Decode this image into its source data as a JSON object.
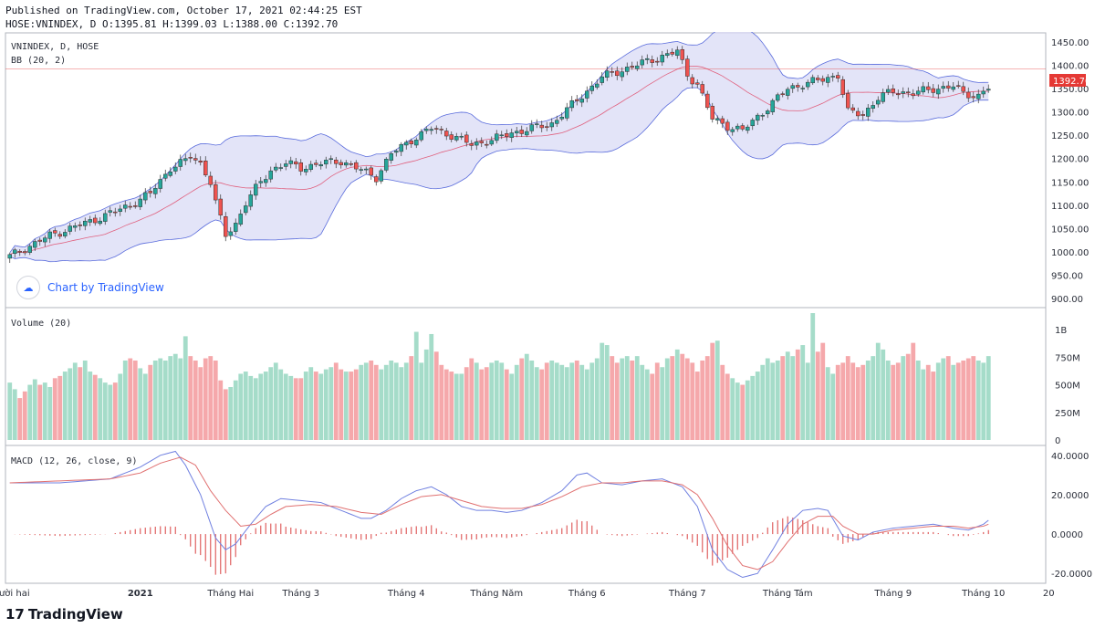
{
  "header": {
    "published": "Published on TradingView.com, October 17, 2021 02:44:25 EST",
    "ohlc": "HOSE:VNINDEX, D O:1395.81 H:1399.03 L:1388.00 C:1392.70"
  },
  "watermark": "Chart by TradingView",
  "footer": {
    "brand": "TradingView",
    "logo": "17"
  },
  "colors": {
    "up": "#26a69a",
    "down": "#ef5350",
    "upVol": "#a5dcc9",
    "downVol": "#f5a8ab",
    "bbFill": "#d9dbf5",
    "bbLine": "#5a6cdc",
    "basis": "#e0607e",
    "macd": "#7080e0",
    "signal": "#e07070",
    "hist": "#e06060",
    "price": "#e53935"
  },
  "chart_data": [
    {
      "type": "candlestick",
      "title": "VNINDEX, D, HOSE",
      "indicator": "BB (20, 2)",
      "last_price": "1392.70",
      "ylim": [
        880,
        1470
      ],
      "ticks": [
        "1450.00",
        "1400.00",
        "1350.00",
        "1300.00",
        "1250.00",
        "1200.00",
        "1150.00",
        "1100.00",
        "1050.00",
        "1000.00",
        "950.00",
        "900.00"
      ],
      "close_anchors": [
        [
          0,
          990
        ],
        [
          8,
          1035
        ],
        [
          16,
          1065
        ],
        [
          24,
          1100
        ],
        [
          28,
          1125
        ],
        [
          32,
          1180
        ],
        [
          35,
          1195
        ],
        [
          36,
          1205
        ],
        [
          38,
          1190
        ],
        [
          40,
          1150
        ],
        [
          41,
          1105
        ],
        [
          43,
          1035
        ],
        [
          45,
          1060
        ],
        [
          47,
          1105
        ],
        [
          50,
          1150
        ],
        [
          52,
          1175
        ],
        [
          55,
          1190
        ],
        [
          58,
          1180
        ],
        [
          62,
          1190
        ],
        [
          66,
          1195
        ],
        [
          70,
          1175
        ],
        [
          73,
          1160
        ],
        [
          76,
          1210
        ],
        [
          80,
          1240
        ],
        [
          84,
          1265
        ],
        [
          88,
          1250
        ],
        [
          92,
          1230
        ],
        [
          96,
          1240
        ],
        [
          100,
          1255
        ],
        [
          104,
          1265
        ],
        [
          108,
          1275
        ],
        [
          112,
          1315
        ],
        [
          115,
          1345
        ],
        [
          118,
          1375
        ],
        [
          122,
          1390
        ],
        [
          126,
          1405
        ],
        [
          130,
          1420
        ],
        [
          133,
          1430
        ],
        [
          135,
          1380
        ],
        [
          137,
          1360
        ],
        [
          140,
          1285
        ],
        [
          143,
          1270
        ],
        [
          146,
          1260
        ],
        [
          149,
          1290
        ],
        [
          152,
          1320
        ],
        [
          155,
          1350
        ],
        [
          158,
          1360
        ],
        [
          162,
          1370
        ],
        [
          165,
          1380
        ],
        [
          167,
          1300
        ],
        [
          170,
          1295
        ],
        [
          173,
          1330
        ],
        [
          176,
          1345
        ],
        [
          180,
          1340
        ],
        [
          184,
          1350
        ],
        [
          188,
          1355
        ],
        [
          190,
          1340
        ],
        [
          193,
          1335
        ],
        [
          196,
          1360
        ],
        [
          199,
          1400
        ],
        [
          201,
          1393
        ]
      ]
    },
    {
      "type": "bar",
      "title": "Volume (20)",
      "ylim": [
        0,
        1150
      ],
      "ticks": [
        {
          "v": 1000,
          "t": "1B"
        },
        {
          "v": 750,
          "t": "750M"
        },
        {
          "v": 500,
          "t": "500M"
        },
        {
          "v": 250,
          "t": "250M"
        },
        {
          "v": 0,
          "t": "0"
        }
      ],
      "values": [
        520,
        460,
        380,
        440,
        500,
        550,
        500,
        520,
        480,
        560,
        580,
        620,
        650,
        700,
        660,
        720,
        620,
        590,
        560,
        520,
        500,
        520,
        600,
        720,
        740,
        720,
        650,
        600,
        680,
        720,
        740,
        720,
        760,
        780,
        740,
        940,
        760,
        720,
        660,
        740,
        760,
        720,
        540,
        460,
        480,
        540,
        600,
        620,
        580,
        560,
        600,
        620,
        660,
        700,
        640,
        600,
        580,
        560,
        560,
        620,
        660,
        620,
        600,
        640,
        660,
        700,
        640,
        620,
        620,
        640,
        680,
        700,
        720,
        680,
        640,
        680,
        720,
        700,
        660,
        700,
        760,
        980,
        700,
        820,
        960,
        800,
        680,
        640,
        620,
        600,
        600,
        660,
        740,
        700,
        640,
        660,
        700,
        720,
        700,
        640,
        600,
        680,
        740,
        780,
        720,
        660,
        640,
        700,
        720,
        700,
        680,
        660,
        700,
        720,
        680,
        640,
        700,
        740,
        880,
        860,
        760,
        700,
        740,
        760,
        720,
        760,
        680,
        640,
        600,
        700,
        660,
        740,
        760,
        820,
        780,
        740,
        700,
        620,
        720,
        760,
        880,
        900,
        680,
        600,
        560,
        520,
        500,
        540,
        580,
        620,
        680,
        740,
        700,
        720,
        760,
        800,
        760,
        820,
        860,
        700,
        1150,
        800,
        880,
        660,
        600,
        680,
        700,
        760,
        700,
        660,
        680,
        720,
        760,
        880,
        820,
        720,
        680,
        700,
        760,
        780,
        880,
        720,
        640,
        680,
        620,
        700,
        740,
        760,
        680,
        700,
        720,
        740,
        760,
        720,
        700,
        760
      ]
    },
    {
      "type": "line",
      "title": "MACD (12, 26, close, 9)",
      "ylim": [
        -25,
        45
      ],
      "ticks": [
        {
          "v": 40,
          "t": "40.0000"
        },
        {
          "v": 20,
          "t": "20.0000"
        },
        {
          "v": 0,
          "t": "0.0000"
        },
        {
          "v": -20,
          "t": "-20.0000"
        }
      ],
      "macd_anchors": [
        [
          0,
          26
        ],
        [
          10,
          26
        ],
        [
          20,
          28
        ],
        [
          26,
          34
        ],
        [
          30,
          40
        ],
        [
          33,
          42
        ],
        [
          35,
          35
        ],
        [
          38,
          20
        ],
        [
          41,
          -2
        ],
        [
          43,
          -8
        ],
        [
          45,
          -5
        ],
        [
          48,
          5
        ],
        [
          51,
          14
        ],
        [
          54,
          18
        ],
        [
          58,
          17
        ],
        [
          62,
          16
        ],
        [
          66,
          12
        ],
        [
          70,
          8
        ],
        [
          72,
          8
        ],
        [
          75,
          12
        ],
        [
          78,
          18
        ],
        [
          81,
          22
        ],
        [
          84,
          24
        ],
        [
          87,
          20
        ],
        [
          90,
          14
        ],
        [
          93,
          12
        ],
        [
          96,
          12
        ],
        [
          99,
          11
        ],
        [
          102,
          12
        ],
        [
          106,
          16
        ],
        [
          110,
          22
        ],
        [
          113,
          30
        ],
        [
          115,
          31
        ],
        [
          118,
          26
        ],
        [
          122,
          25
        ],
        [
          126,
          27
        ],
        [
          130,
          28
        ],
        [
          134,
          24
        ],
        [
          137,
          14
        ],
        [
          140,
          -8
        ],
        [
          143,
          -18
        ],
        [
          146,
          -22
        ],
        [
          149,
          -20
        ],
        [
          152,
          -8
        ],
        [
          155,
          5
        ],
        [
          158,
          12
        ],
        [
          161,
          13
        ],
        [
          163,
          12
        ],
        [
          166,
          -1
        ],
        [
          169,
          -3
        ],
        [
          172,
          1
        ],
        [
          176,
          3
        ],
        [
          180,
          4
        ],
        [
          184,
          5
        ],
        [
          188,
          3
        ],
        [
          191,
          2
        ],
        [
          194,
          5
        ],
        [
          197,
          11
        ],
        [
          200,
          14
        ],
        [
          201,
          14
        ]
      ],
      "signal_anchors": [
        [
          0,
          26
        ],
        [
          10,
          27
        ],
        [
          20,
          28
        ],
        [
          26,
          31
        ],
        [
          30,
          36
        ],
        [
          34,
          39
        ],
        [
          37,
          35
        ],
        [
          40,
          22
        ],
        [
          43,
          12
        ],
        [
          46,
          4
        ],
        [
          49,
          5
        ],
        [
          52,
          10
        ],
        [
          55,
          14
        ],
        [
          60,
          15
        ],
        [
          65,
          14
        ],
        [
          70,
          11
        ],
        [
          74,
          10
        ],
        [
          78,
          15
        ],
        [
          82,
          19
        ],
        [
          86,
          20
        ],
        [
          90,
          17
        ],
        [
          94,
          14
        ],
        [
          98,
          13
        ],
        [
          102,
          13
        ],
        [
          106,
          15
        ],
        [
          110,
          19
        ],
        [
          114,
          24
        ],
        [
          118,
          26
        ],
        [
          122,
          26
        ],
        [
          126,
          27
        ],
        [
          130,
          27
        ],
        [
          134,
          25
        ],
        [
          137,
          20
        ],
        [
          140,
          8
        ],
        [
          143,
          -6
        ],
        [
          146,
          -16
        ],
        [
          149,
          -18
        ],
        [
          152,
          -14
        ],
        [
          155,
          -4
        ],
        [
          158,
          5
        ],
        [
          161,
          9
        ],
        [
          164,
          9
        ],
        [
          166,
          4
        ],
        [
          169,
          0
        ],
        [
          172,
          0
        ],
        [
          176,
          2
        ],
        [
          180,
          3
        ],
        [
          184,
          4
        ],
        [
          188,
          4
        ],
        [
          191,
          3
        ],
        [
          194,
          4
        ],
        [
          197,
          7
        ],
        [
          200,
          10
        ],
        [
          201,
          11
        ]
      ]
    }
  ],
  "x_axis": [
    {
      "i": -3,
      "t": "Tháng Mười hai"
    },
    {
      "i": 26,
      "t": "2021"
    },
    {
      "i": 44,
      "t": "Tháng Hai"
    },
    {
      "i": 58,
      "t": "Tháng 3"
    },
    {
      "i": 79,
      "t": "Tháng 4"
    },
    {
      "i": 97,
      "t": "Tháng Năm"
    },
    {
      "i": 115,
      "t": "Tháng 6"
    },
    {
      "i": 135,
      "t": "Tháng 7"
    },
    {
      "i": 155,
      "t": "Tháng Tám"
    },
    {
      "i": 176,
      "t": "Tháng 9"
    },
    {
      "i": 194,
      "t": "Tháng 10"
    },
    {
      "i": 207,
      "t": "20"
    }
  ]
}
